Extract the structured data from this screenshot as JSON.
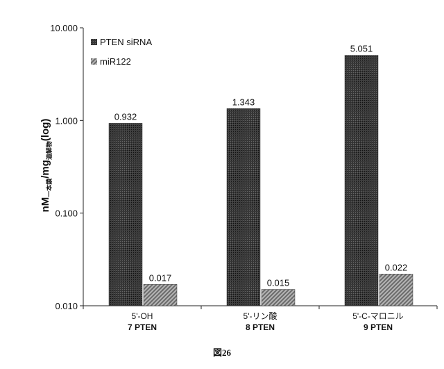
{
  "chart_data": {
    "type": "bar",
    "scale": "log",
    "categories": [
      {
        "line1": "5'-OH",
        "line2": "7 PTEN"
      },
      {
        "line1": "5'-リン酸",
        "line2": "8 PTEN"
      },
      {
        "line1": "5'-C-マロニル",
        "line2": "9 PTEN"
      }
    ],
    "series": [
      {
        "name": "PTEN siRNA",
        "values": [
          0.932,
          1.343,
          5.051
        ],
        "labels": [
          "0.932",
          "1.343",
          "5.051"
        ],
        "color": "#2b2b2b"
      },
      {
        "name": "miR122",
        "values": [
          0.017,
          0.015,
          0.022
        ],
        "labels": [
          "0.017",
          "0.015",
          "0.022"
        ],
        "color": "#8a8a8a"
      }
    ],
    "ylim": [
      0.01,
      10
    ],
    "yticks": [
      {
        "value": 10,
        "label": "10.000"
      },
      {
        "value": 1,
        "label": "1.000"
      },
      {
        "value": 0.1,
        "label": "0.100"
      },
      {
        "value": 0.01,
        "label": "0.010"
      }
    ],
    "ylabel": {
      "main": "nM",
      "sub1": "一本鎖",
      "mid": "/mg",
      "sub2": "溶解物",
      "end": "(log)"
    },
    "legend_position": "top-left",
    "grid": false
  },
  "caption": "図26"
}
